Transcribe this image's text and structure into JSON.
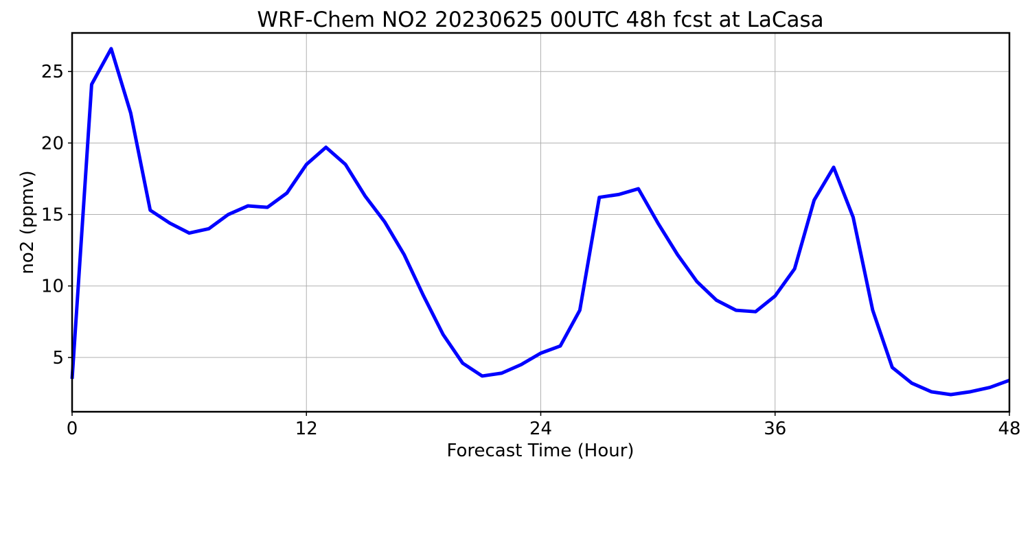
{
  "chart_data": {
    "type": "line",
    "title": "WRF-Chem NO2  20230625 00UTC 48h fcst at LaCasa",
    "xlabel": "Forecast Time (Hour)",
    "ylabel": "no2  (ppmv)",
    "xlim": [
      0,
      48
    ],
    "ylim": [
      1.2,
      27.7
    ],
    "xticks": [
      0,
      12,
      24,
      36,
      48
    ],
    "yticks": [
      5,
      10,
      15,
      20,
      25
    ],
    "grid": true,
    "line_color": "#0000ff",
    "series": [
      {
        "x": [
          0,
          1,
          2,
          3,
          4,
          5,
          6,
          7,
          8,
          9,
          10,
          11,
          12,
          13,
          14,
          15,
          16,
          17,
          18,
          19,
          20,
          21,
          22,
          23,
          24,
          25,
          26,
          27,
          28,
          29,
          30,
          31,
          32,
          33,
          34,
          35,
          36,
          37,
          38,
          39,
          40,
          41,
          42,
          43,
          44,
          45,
          46,
          47,
          48
        ],
        "values": [
          3.5,
          24.1,
          26.6,
          22.1,
          15.3,
          14.4,
          13.7,
          14.0,
          15.0,
          15.6,
          15.5,
          16.5,
          18.5,
          19.7,
          18.5,
          16.3,
          14.5,
          12.2,
          9.3,
          6.6,
          4.6,
          3.7,
          3.9,
          4.5,
          5.3,
          5.8,
          8.3,
          16.2,
          16.4,
          16.8,
          14.4,
          12.2,
          10.3,
          9.0,
          8.3,
          8.2,
          9.3,
          11.2,
          16.0,
          18.3,
          14.8,
          8.3,
          4.3,
          3.2,
          2.6,
          2.4,
          2.6,
          2.9,
          3.4
        ]
      }
    ]
  }
}
